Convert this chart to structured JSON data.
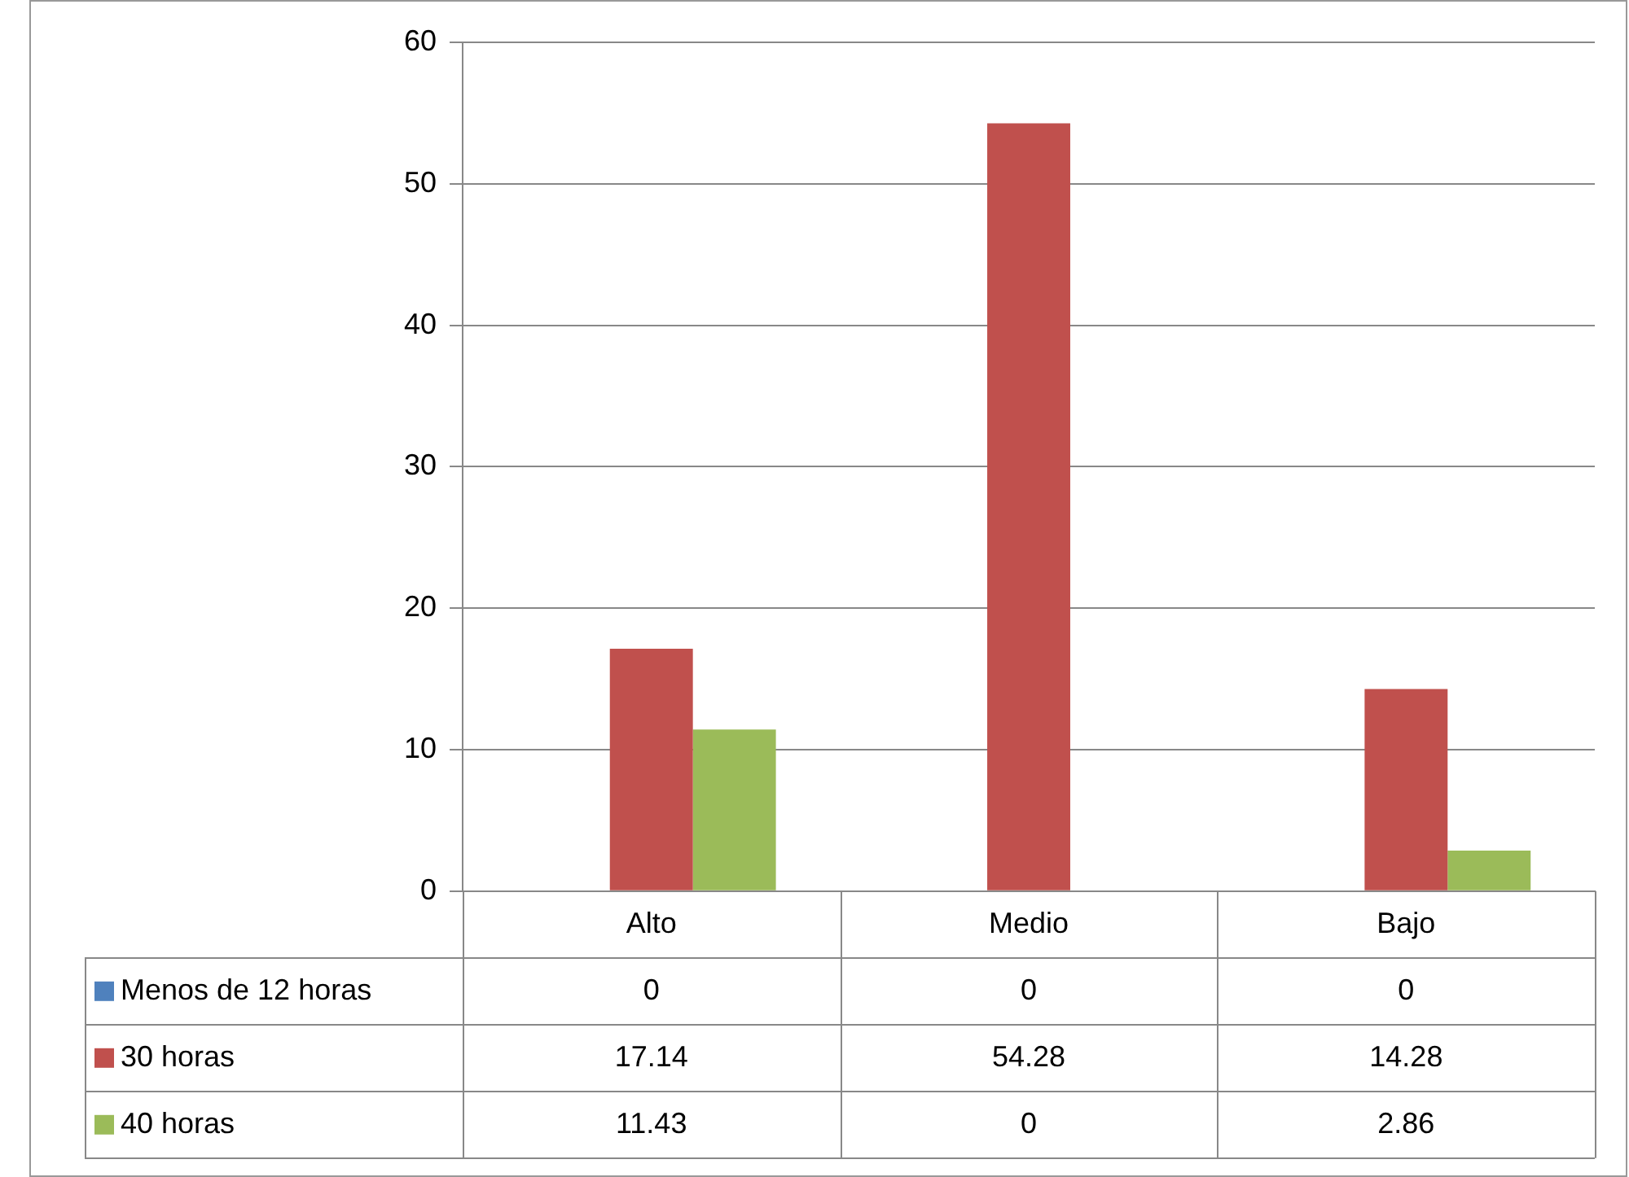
{
  "chart_data": {
    "type": "bar",
    "categories": [
      "Alto",
      "Medio",
      "Bajo"
    ],
    "series": [
      {
        "name": "Menos de 12 horas",
        "color": "#4f81bd",
        "values": [
          0,
          0,
          0
        ]
      },
      {
        "name": "30 horas",
        "color": "#c0504d",
        "values": [
          17.14,
          54.28,
          14.28
        ]
      },
      {
        "name": "40 horas",
        "color": "#9bbb59",
        "values": [
          11.43,
          0,
          2.86
        ]
      }
    ],
    "ylim": [
      0,
      60
    ],
    "yticks": [
      0,
      10,
      20,
      30,
      40,
      50,
      60
    ],
    "grid": "y",
    "legend": "bottom",
    "data_labels": true
  }
}
